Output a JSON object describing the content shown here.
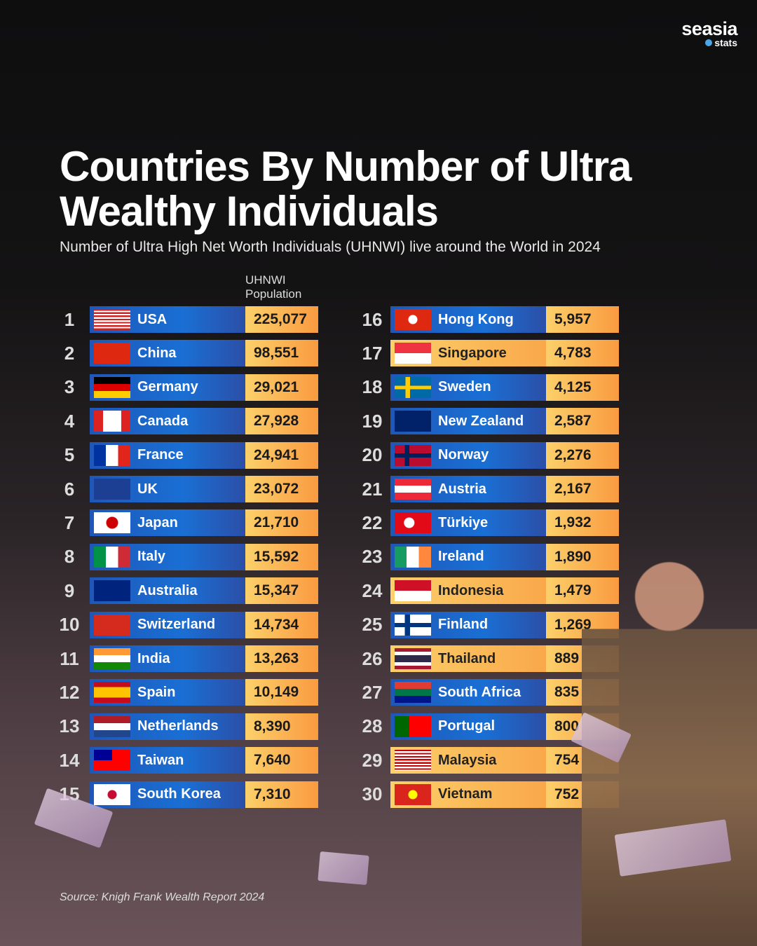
{
  "logo": {
    "name": "seasia",
    "tag": "stats"
  },
  "title": "Countries By Number of Ultra Wealthy Individuals",
  "subtitle": "Number of Ultra High Net Worth Individuals (UHNWI) live around the World in 2024",
  "source": "Source: Knigh Frank Wealth Report 2024",
  "chart_data": {
    "type": "table",
    "column_header": "UHNWI Population",
    "rows": [
      {
        "rank": "1",
        "country": "USA",
        "value": "225,077",
        "flag": "flag-usa",
        "style": "blue"
      },
      {
        "rank": "2",
        "country": "China",
        "value": "98,551",
        "flag": "flag-china",
        "style": "blue"
      },
      {
        "rank": "3",
        "country": "Germany",
        "value": "29,021",
        "flag": "flag-germany",
        "style": "blue"
      },
      {
        "rank": "4",
        "country": "Canada",
        "value": "27,928",
        "flag": "flag-canada",
        "style": "blue"
      },
      {
        "rank": "5",
        "country": "France",
        "value": "24,941",
        "flag": "flag-france",
        "style": "blue"
      },
      {
        "rank": "6",
        "country": "UK",
        "value": "23,072",
        "flag": "flag-uk",
        "style": "blue"
      },
      {
        "rank": "7",
        "country": "Japan",
        "value": "21,710",
        "flag": "flag-japan",
        "style": "blue"
      },
      {
        "rank": "8",
        "country": "Italy",
        "value": "15,592",
        "flag": "flag-italy",
        "style": "blue"
      },
      {
        "rank": "9",
        "country": "Australia",
        "value": "15,347",
        "flag": "flag-australia",
        "style": "blue"
      },
      {
        "rank": "10",
        "country": "Switzerland",
        "value": "14,734",
        "flag": "flag-switzerland",
        "style": "blue"
      },
      {
        "rank": "11",
        "country": "India",
        "value": "13,263",
        "flag": "flag-india",
        "style": "blue"
      },
      {
        "rank": "12",
        "country": "Spain",
        "value": "10,149",
        "flag": "flag-spain",
        "style": "blue"
      },
      {
        "rank": "13",
        "country": "Netherlands",
        "value": "8,390",
        "flag": "flag-netherlands",
        "style": "blue"
      },
      {
        "rank": "14",
        "country": "Taiwan",
        "value": "7,640",
        "flag": "flag-taiwan",
        "style": "blue"
      },
      {
        "rank": "15",
        "country": "South Korea",
        "value": "7,310",
        "flag": "flag-south-korea",
        "style": "blue"
      },
      {
        "rank": "16",
        "country": "Hong Kong",
        "value": "5,957",
        "flag": "flag-hong-kong",
        "style": "blue"
      },
      {
        "rank": "17",
        "country": "Singapore",
        "value": "4,783",
        "flag": "flag-singapore",
        "style": "orange"
      },
      {
        "rank": "18",
        "country": "Sweden",
        "value": "4,125",
        "flag": "flag-sweden",
        "style": "blue"
      },
      {
        "rank": "19",
        "country": "New Zealand",
        "value": "2,587",
        "flag": "flag-new-zealand",
        "style": "blue"
      },
      {
        "rank": "20",
        "country": "Norway",
        "value": "2,276",
        "flag": "flag-norway",
        "style": "blue"
      },
      {
        "rank": "21",
        "country": "Austria",
        "value": "2,167",
        "flag": "flag-austria",
        "style": "blue"
      },
      {
        "rank": "22",
        "country": "Türkiye",
        "value": "1,932",
        "flag": "flag-turkiye",
        "style": "blue"
      },
      {
        "rank": "23",
        "country": "Ireland",
        "value": "1,890",
        "flag": "flag-ireland",
        "style": "blue"
      },
      {
        "rank": "24",
        "country": "Indonesia",
        "value": "1,479",
        "flag": "flag-indonesia",
        "style": "orange"
      },
      {
        "rank": "25",
        "country": "Finland",
        "value": "1,269",
        "flag": "flag-finland",
        "style": "blue"
      },
      {
        "rank": "26",
        "country": "Thailand",
        "value": "889",
        "flag": "flag-thailand",
        "style": "orange"
      },
      {
        "rank": "27",
        "country": "South Africa",
        "value": "835",
        "flag": "flag-south-africa",
        "style": "blue"
      },
      {
        "rank": "28",
        "country": "Portugal",
        "value": "800",
        "flag": "flag-portugal",
        "style": "blue"
      },
      {
        "rank": "29",
        "country": "Malaysia",
        "value": "754",
        "flag": "flag-malaysia",
        "style": "orange"
      },
      {
        "rank": "30",
        "country": "Vietnam",
        "value": "752",
        "flag": "flag-vietnam",
        "style": "orange"
      }
    ]
  }
}
